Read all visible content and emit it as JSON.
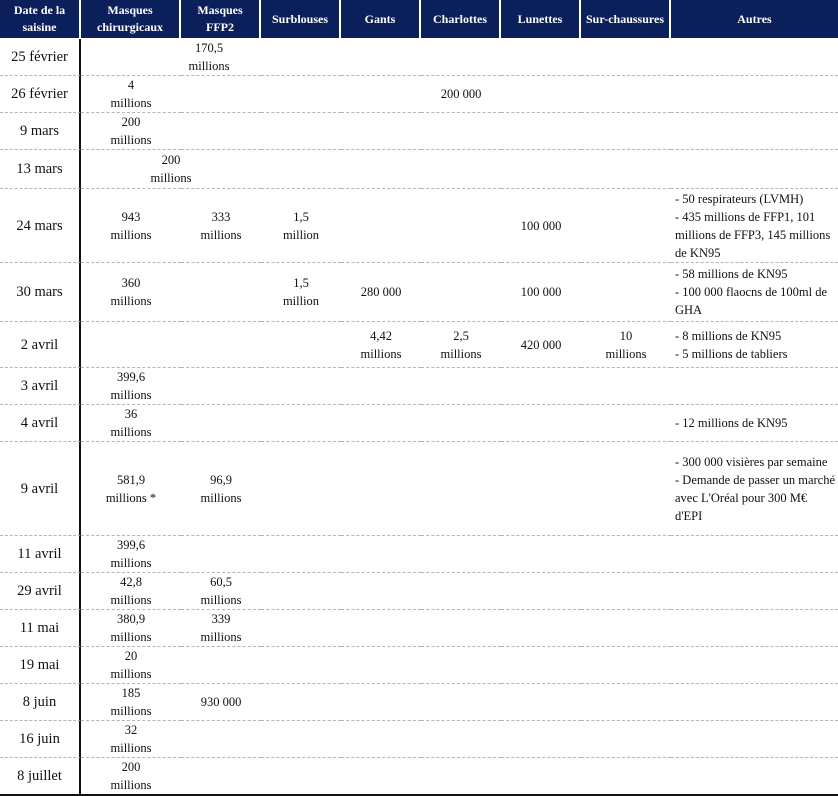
{
  "colors": {
    "header_bg": "#0b1f5b",
    "header_text": "#ffffff"
  },
  "headers": [
    "Date de la saisine",
    "Masques chirurgicaux",
    "Masques FFP2",
    "Surblouses",
    "Gants",
    "Charlottes",
    "Lunettes",
    "Sur-chaussures",
    "Autres"
  ],
  "rows": [
    [
      "25 février",
      "",
      "170,5\nmillions",
      "",
      "",
      "",
      "",
      "",
      ""
    ],
    [
      "26 février",
      "4\nmillions",
      "",
      "",
      "",
      "200 000",
      "",
      "",
      ""
    ],
    [
      "9 mars",
      "200\nmillions",
      "",
      "",
      "",
      "",
      "",
      "",
      ""
    ],
    [
      "13 mars",
      "200\nmillions",
      "",
      "",
      "",
      "",
      "",
      "",
      ""
    ],
    [
      "24 mars",
      "943\nmillions",
      "333\nmillions",
      "1,5\nmillion",
      "",
      "",
      "100 000",
      "",
      "- 50 respirateurs (LVMH)\n- 435 millions de FFP1, 101 millions de FFP3, 145 millions de KN95"
    ],
    [
      "30 mars",
      "360\nmillions",
      "",
      "1,5\nmillion",
      "280 000",
      "",
      "100 000",
      "",
      "- 58 millions de KN95\n- 100 000 flaocns de 100ml de GHA"
    ],
    [
      "2 avril",
      "",
      "",
      "",
      "4,42\nmillions",
      "2,5\nmillions",
      "420 000",
      "10\nmillions",
      "- 8 millions de KN95\n- 5 millions de tabliers"
    ],
    [
      "3 avril",
      "399,6\nmillions",
      "",
      "",
      "",
      "",
      "",
      "",
      ""
    ],
    [
      "4 avril",
      "36\nmillions",
      "",
      "",
      "",
      "",
      "",
      "",
      "- 12 millions de KN95"
    ],
    [
      "9 avril",
      "581,9\nmillions *",
      "96,9\nmillions",
      "",
      "",
      "",
      "",
      "",
      "- 300 000 visières par semaine\n- Demande de passer un marché avec L'Oréal pour 300 M€ d'EPI"
    ],
    [
      "11 avril",
      "399,6\nmillions",
      "",
      "",
      "",
      "",
      "",
      "",
      ""
    ],
    [
      "29 avril",
      "42,8\nmillions",
      "60,5\nmillions",
      "",
      "",
      "",
      "",
      "",
      ""
    ],
    [
      "11 mai",
      "380,9\nmillions",
      "339\nmillions",
      "",
      "",
      "",
      "",
      "",
      ""
    ],
    [
      "19 mai",
      "20\nmillions",
      "",
      "",
      "",
      "",
      "",
      "",
      ""
    ],
    [
      "8 juin",
      "185\nmillions",
      "930 000",
      "",
      "",
      "",
      "",
      "",
      ""
    ],
    [
      "16 juin",
      "32\nmillions",
      "",
      "",
      "",
      "",
      "",
      "",
      ""
    ],
    [
      "8 juillet",
      "200\nmillions",
      "",
      "",
      "",
      "",
      "",
      "",
      ""
    ]
  ]
}
